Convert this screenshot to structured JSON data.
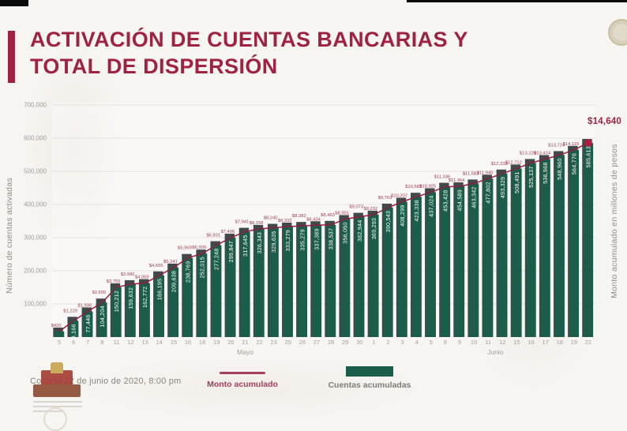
{
  "title": {
    "line1": "ACTIVACIÓN DE CUENTAS BANCARIAS Y",
    "line2": "TOTAL DE DISPERSIÓN"
  },
  "footer": {
    "cutoff": "Corte al 22 de junio de 2020, 8:00 pm"
  },
  "legend": {
    "items": [
      {
        "label": "Monto acumulado",
        "swatch": "line",
        "color": "#a53e5d"
      },
      {
        "label": "Cuentas acumuladas",
        "swatch": "bar",
        "color": "#1b5d4a"
      }
    ],
    "position": "bottom"
  },
  "colors": {
    "title": "#9f2241",
    "bar": "#1b5d4a",
    "bar_shadow": "#42484c",
    "line": "#8e1f3c",
    "end_dot": "#ad1e3d",
    "axis_text": "#a29c96",
    "gridline": "#e5e2de"
  },
  "chart_data": {
    "type": "bar",
    "subtype": "combo-bar-line",
    "title": "ACTIVACIÓN DE CUENTAS BANCARIAS Y TOTAL DE DISPERSIÓN",
    "ylabel_left": "Número de cuentas activadas",
    "ylabel_right": "Monto acumulado en millones de pesos",
    "yticks_left": [
      "700,000",
      "600,000",
      "500,000",
      "400,000",
      "300,000",
      "200,000",
      "100,000"
    ],
    "ylim_left": [
      0,
      700000
    ],
    "ylim_right_approx": [
      0,
      17800
    ],
    "grid": true,
    "months": [
      {
        "label": "Mayo",
        "label_center_index": 13,
        "days": [
          "5",
          "6",
          "7",
          "8",
          "11",
          "12",
          "13",
          "14",
          "15",
          "16",
          "18",
          "19",
          "20",
          "21",
          "22",
          "23",
          "25",
          "26",
          "27",
          "28",
          "29",
          "30"
        ]
      },
      {
        "label": "Junio",
        "label_center_index": 30.5,
        "days": [
          "1",
          "2",
          "3",
          "4",
          "5",
          "8",
          "9",
          "10",
          "11",
          "12",
          "15",
          "16",
          "17",
          "18",
          "19",
          "22"
        ]
      }
    ],
    "series": [
      {
        "name": "Cuentas acumuladas",
        "kind": "bar",
        "color": "#1b5d4a",
        "values": [
          16800,
          49166,
          77446,
          104204,
          150212,
          159632,
          162772,
          186195,
          209638,
          238769,
          252015,
          277248,
          299847,
          317645,
          326343,
          329635,
          333279,
          335279,
          337389,
          338537,
          356050,
          362944,
          369293,
          390543,
          408299,
          423338,
          437024,
          453428,
          454589,
          463342,
          477802,
          493329,
          508491,
          525137,
          536968,
          548960,
          564776,
          585613
        ],
        "labels": [
          "",
          "49,166",
          "77,446",
          "104,204",
          "150,212",
          "159,632",
          "162,772",
          "186,195",
          "209,638",
          "238,769",
          "252,015",
          "277,248",
          "299,847",
          "317,645",
          "326,343",
          "329,635",
          "333,279",
          "335,279",
          "337,389",
          "338,537",
          "356,050",
          "362,944",
          "369,293",
          "390,543",
          "408,299",
          "423,338",
          "437,024",
          "453,428",
          "454,589",
          "463,342",
          "477,802",
          "493,329",
          "508,491",
          "525,137",
          "536,968",
          "548,960",
          "564,776",
          "585,613"
        ]
      },
      {
        "name": "Monto acumulado",
        "kind": "line",
        "color": "#8e1f3c",
        "values": [
          420,
          1229,
          1936,
          2605,
          3755,
          3990,
          4069,
          4655,
          5241,
          5969,
          6300,
          6931,
          7496,
          7941,
          8158,
          8240,
          8332,
          8382,
          8434,
          8463,
          8901,
          9073,
          9232,
          9763,
          10207,
          10583,
          10925,
          11336,
          11364,
          11583,
          11945,
          12333,
          12712,
          13128,
          13424,
          13724,
          14119,
          14640
        ],
        "labels": [
          "$420",
          "$1,229",
          "$1,936",
          "$2,605",
          "$3,755",
          "$3,990",
          "$4,069",
          "$4,655",
          "$5,241",
          "$5,969",
          "$6,300",
          "$6,931",
          "$7,496",
          "$7,941",
          "$8,158",
          "$8,240",
          "$8,332",
          "$8,382",
          "$8,434",
          "$8,463",
          "$8,901",
          "$9,073",
          "$9,232",
          "$9,763",
          "$10,207",
          "$10,583",
          "$10,925",
          "$11,336",
          "$11,364",
          "$11,583",
          "$11,945",
          "$12,333",
          "$12,712",
          "$13,128",
          "$13,424",
          "$13,724",
          "$14,119",
          ""
        ]
      }
    ],
    "annotation": {
      "text": "$14,640",
      "x_index": 37
    }
  }
}
